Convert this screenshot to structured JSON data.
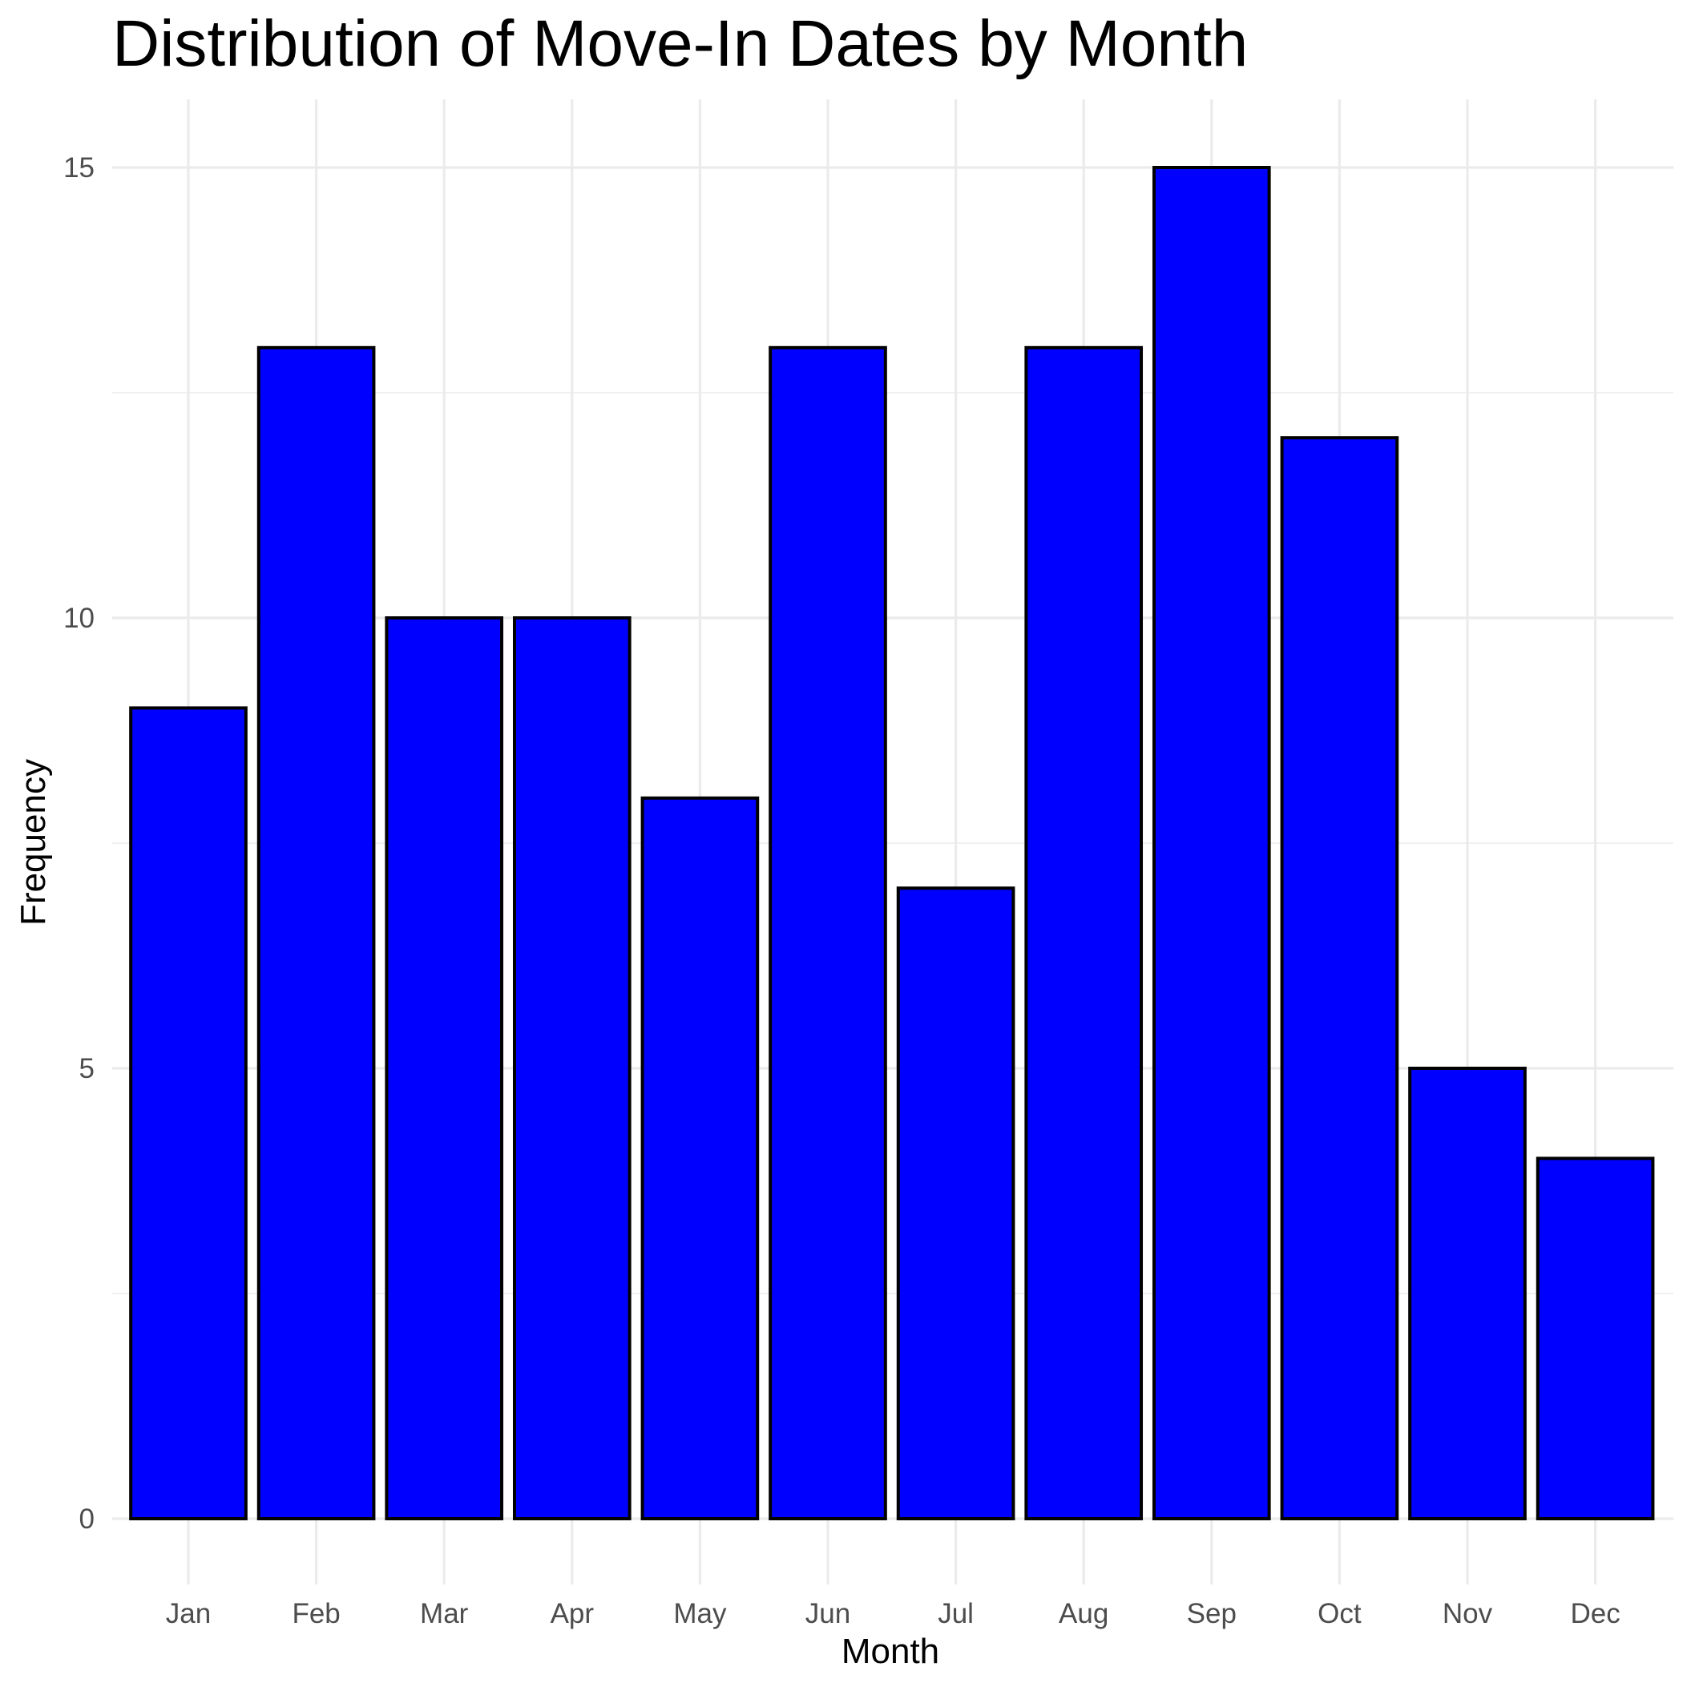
{
  "chart_data": {
    "type": "bar",
    "title": "Distribution of Move-In Dates by Month",
    "xlabel": "Month",
    "ylabel": "Frequency",
    "categories": [
      "Jan",
      "Feb",
      "Mar",
      "Apr",
      "May",
      "Jun",
      "Jul",
      "Aug",
      "Sep",
      "Oct",
      "Nov",
      "Dec"
    ],
    "values": [
      9,
      13,
      10,
      10,
      8,
      13,
      7,
      13,
      15,
      12,
      5,
      4
    ],
    "ylim": [
      0,
      15.75
    ],
    "y_ticks": [
      0,
      5,
      10,
      15
    ],
    "y_minor_ticks": [
      2.5,
      7.5,
      12.5
    ],
    "grid": true,
    "legend": "none",
    "bar_fill": "#0000ff",
    "bar_outline": "#000000"
  }
}
